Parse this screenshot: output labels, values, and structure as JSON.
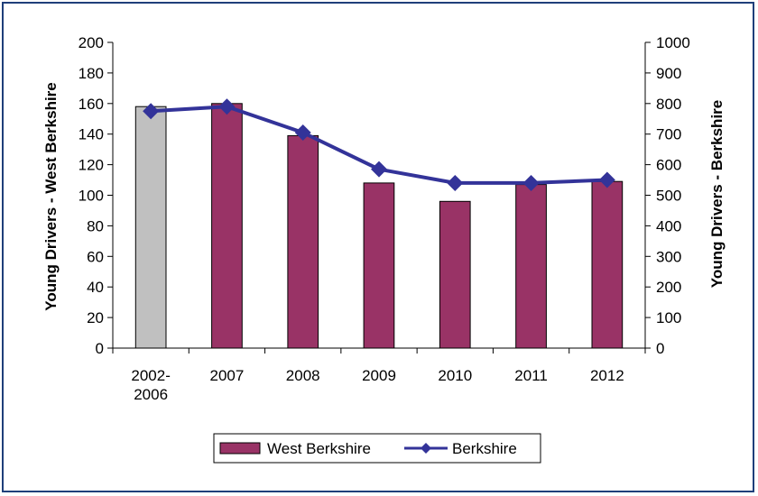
{
  "chart_data": {
    "type": "bar+line",
    "categories": [
      [
        "2002-",
        "2006"
      ],
      [
        "2007"
      ],
      [
        "2008"
      ],
      [
        "2009"
      ],
      [
        "2010"
      ],
      [
        "2011"
      ],
      [
        "2012"
      ]
    ],
    "series": [
      {
        "name": "West Berkshire",
        "type": "bar",
        "axis": "left",
        "values": [
          158,
          160,
          139,
          108,
          96,
          107,
          109
        ],
        "color": "#993366",
        "highlight_colors": [
          "#c0c0c0",
          null,
          null,
          null,
          null,
          null,
          null
        ]
      },
      {
        "name": "Berkshire",
        "type": "line",
        "axis": "right",
        "values": [
          775,
          790,
          705,
          585,
          540,
          540,
          550
        ],
        "color": "#333399",
        "marker": "diamond"
      }
    ],
    "y_left": {
      "label": "Young Drivers  - West Berkshire",
      "min": 0,
      "max": 200,
      "step": 20
    },
    "y_right": {
      "label": "Young Drivers - Berkshire",
      "min": 0,
      "max": 1000,
      "step": 100
    },
    "grid": false,
    "legend": "bottom-center"
  }
}
